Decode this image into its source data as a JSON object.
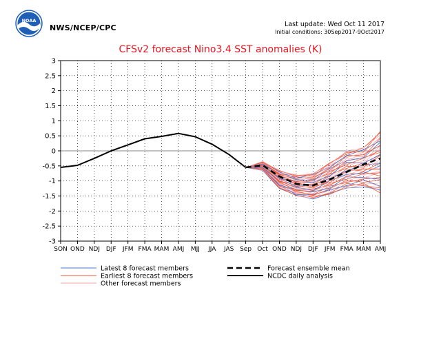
{
  "header": {
    "agency": "NWS/NCEP/CPC",
    "logo_text": "NOAA",
    "last_update": "Last update: Wed Oct 11 2017",
    "initial_conditions": "Initial conditions: 30Sep2017-9Oct2017"
  },
  "colors": {
    "title": "#e8141e",
    "latest_members": "#4a78d6",
    "earliest_members": "#ee5a3a",
    "other_members": "#f2a0a8",
    "observed": "#000000",
    "ensemble_mean": "#000000",
    "zero_line": "#888888",
    "logo_blue": "#1f5fb6"
  },
  "chart_data": {
    "type": "line",
    "title": "CFSv2 forecast Nino3.4 SST anomalies (K)",
    "x_tick_labels": [
      "SON",
      "OND",
      "NDJ",
      "DJF",
      "JFM",
      "FMA",
      "MAM",
      "AMJ",
      "MJJ",
      "JJA",
      "JAS",
      "Sep",
      "Oct",
      "OND",
      "NDJ",
      "DJF",
      "JFM",
      "FMA",
      "MAM",
      "AMJ"
    ],
    "y_ticks": [
      -3,
      -2.5,
      -2,
      -1.5,
      -1,
      -0.5,
      0,
      0.5,
      1,
      1.5,
      2,
      2.5,
      3
    ],
    "ylim": [
      -3,
      3
    ],
    "grid": true,
    "legend": {
      "placement": "bottom",
      "entries": [
        {
          "label": "Latest 8 forecast members",
          "style": "thin-blue"
        },
        {
          "label": "Earliest 8 forecast members",
          "style": "thin-orange"
        },
        {
          "label": "Other forecast members",
          "style": "thin-pink"
        },
        {
          "label": "Forecast ensemble mean",
          "style": "dashed-black"
        },
        {
          "label": "NCDC daily analysis",
          "style": "solid-black"
        }
      ]
    },
    "series": [
      {
        "name": "NCDC daily analysis",
        "x": [
          "SON",
          "OND",
          "NDJ",
          "DJF",
          "JFM",
          "FMA",
          "MAM",
          "AMJ",
          "MJJ",
          "JJA",
          "JAS",
          "Sep"
        ],
        "values": [
          -0.55,
          -0.48,
          -0.25,
          0.0,
          0.2,
          0.4,
          0.48,
          0.58,
          0.47,
          0.22,
          -0.12,
          -0.55
        ]
      },
      {
        "name": "Forecast ensemble mean",
        "x": [
          "Sep",
          "Oct",
          "OND",
          "NDJ",
          "DJF",
          "JFM",
          "FMA",
          "MAM",
          "AMJ"
        ],
        "values": [
          -0.55,
          -0.48,
          -0.85,
          -1.1,
          -1.15,
          -0.95,
          -0.7,
          -0.45,
          -0.25
        ]
      }
    ],
    "member_spread": {
      "x": [
        "Sep",
        "Oct",
        "OND",
        "NDJ",
        "DJF",
        "JFM",
        "FMA",
        "MAM",
        "AMJ"
      ],
      "min": [
        -0.55,
        -0.65,
        -1.25,
        -1.5,
        -1.6,
        -1.45,
        -1.25,
        -1.2,
        -1.4
      ],
      "max": [
        -0.55,
        -0.35,
        -0.65,
        -0.8,
        -0.75,
        -0.4,
        0.0,
        0.1,
        0.65
      ]
    }
  }
}
